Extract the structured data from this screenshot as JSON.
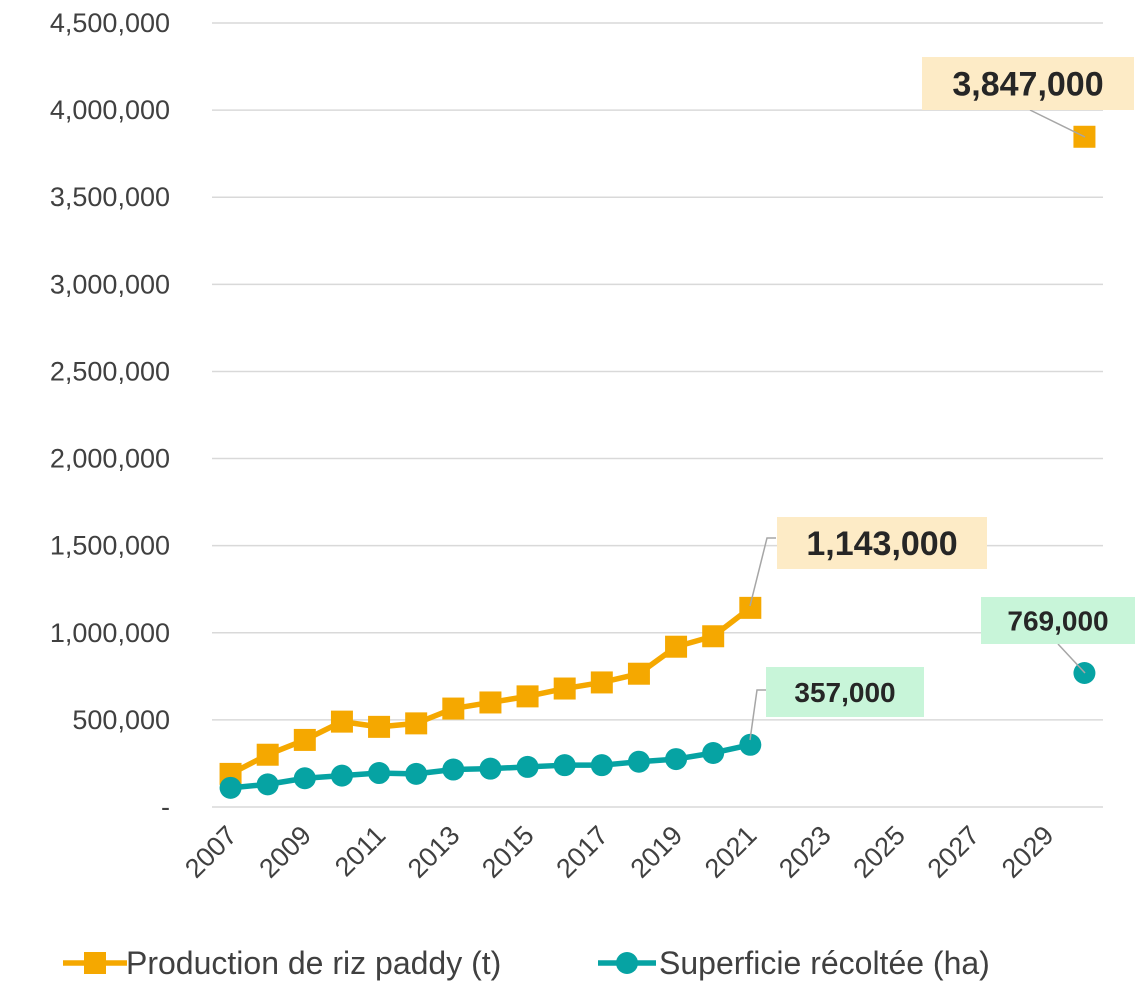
{
  "chart_data": {
    "type": "line",
    "x": [
      2007,
      2008,
      2009,
      2010,
      2011,
      2012,
      2013,
      2014,
      2015,
      2016,
      2017,
      2018,
      2019,
      2020,
      2021,
      2030
    ],
    "x_ticks": [
      "2007",
      "2009",
      "2011",
      "2013",
      "2015",
      "2017",
      "2019",
      "2021",
      "2023",
      "2025",
      "2027",
      "2029"
    ],
    "x_tick_values": [
      2007,
      2009,
      2011,
      2013,
      2015,
      2017,
      2019,
      2021,
      2023,
      2025,
      2027,
      2029
    ],
    "xlim": [
      2006.5,
      2030.5
    ],
    "y_ticks": [
      "-",
      "500,000",
      "1,000,000",
      "1,500,000",
      "2,000,000",
      "2,500,000",
      "3,000,000",
      "3,500,000",
      "4,000,000",
      "4,500,000"
    ],
    "y_tick_values": [
      0,
      500000,
      1000000,
      1500000,
      2000000,
      2500000,
      3000000,
      3500000,
      4000000,
      4500000
    ],
    "ylim": [
      0,
      4500000
    ],
    "grid": true,
    "legend_position": "bottom",
    "series": [
      {
        "name": "Production de riz paddy (t)",
        "color": "#F5A800",
        "marker": "square",
        "points": [
          [
            2007,
            190000
          ],
          [
            2008,
            300000
          ],
          [
            2009,
            385000
          ],
          [
            2010,
            490000
          ],
          [
            2011,
            460000
          ],
          [
            2012,
            480000
          ],
          [
            2013,
            565000
          ],
          [
            2014,
            600000
          ],
          [
            2015,
            635000
          ],
          [
            2016,
            680000
          ],
          [
            2017,
            715000
          ],
          [
            2018,
            765000
          ],
          [
            2019,
            920000
          ],
          [
            2020,
            980000
          ],
          [
            2021,
            1143000
          ]
        ],
        "isolated_points": [
          [
            2030,
            3847000
          ]
        ]
      },
      {
        "name": "Superficie récoltée (ha)",
        "color": "#06A3A3",
        "marker": "circle",
        "points": [
          [
            2007,
            110000
          ],
          [
            2008,
            130000
          ],
          [
            2009,
            165000
          ],
          [
            2010,
            180000
          ],
          [
            2011,
            195000
          ],
          [
            2012,
            190000
          ],
          [
            2013,
            215000
          ],
          [
            2014,
            220000
          ],
          [
            2015,
            230000
          ],
          [
            2016,
            240000
          ],
          [
            2017,
            240000
          ],
          [
            2018,
            260000
          ],
          [
            2019,
            275000
          ],
          [
            2020,
            310000
          ],
          [
            2021,
            357000
          ]
        ],
        "isolated_points": [
          [
            2030,
            769000
          ]
        ]
      }
    ],
    "annotations": [
      {
        "label": "3,847,000",
        "series": 0,
        "x": 2030,
        "y": 3847000,
        "bg": "#FDEBC6"
      },
      {
        "label": "1,143,000",
        "series": 0,
        "x": 2021,
        "y": 1143000,
        "bg": "#FDEBC6"
      },
      {
        "label": "769,000",
        "series": 1,
        "x": 2030,
        "y": 769000,
        "bg": "#C8F5D9"
      },
      {
        "label": "357,000",
        "series": 1,
        "x": 2021,
        "y": 357000,
        "bg": "#C8F5D9"
      }
    ]
  }
}
